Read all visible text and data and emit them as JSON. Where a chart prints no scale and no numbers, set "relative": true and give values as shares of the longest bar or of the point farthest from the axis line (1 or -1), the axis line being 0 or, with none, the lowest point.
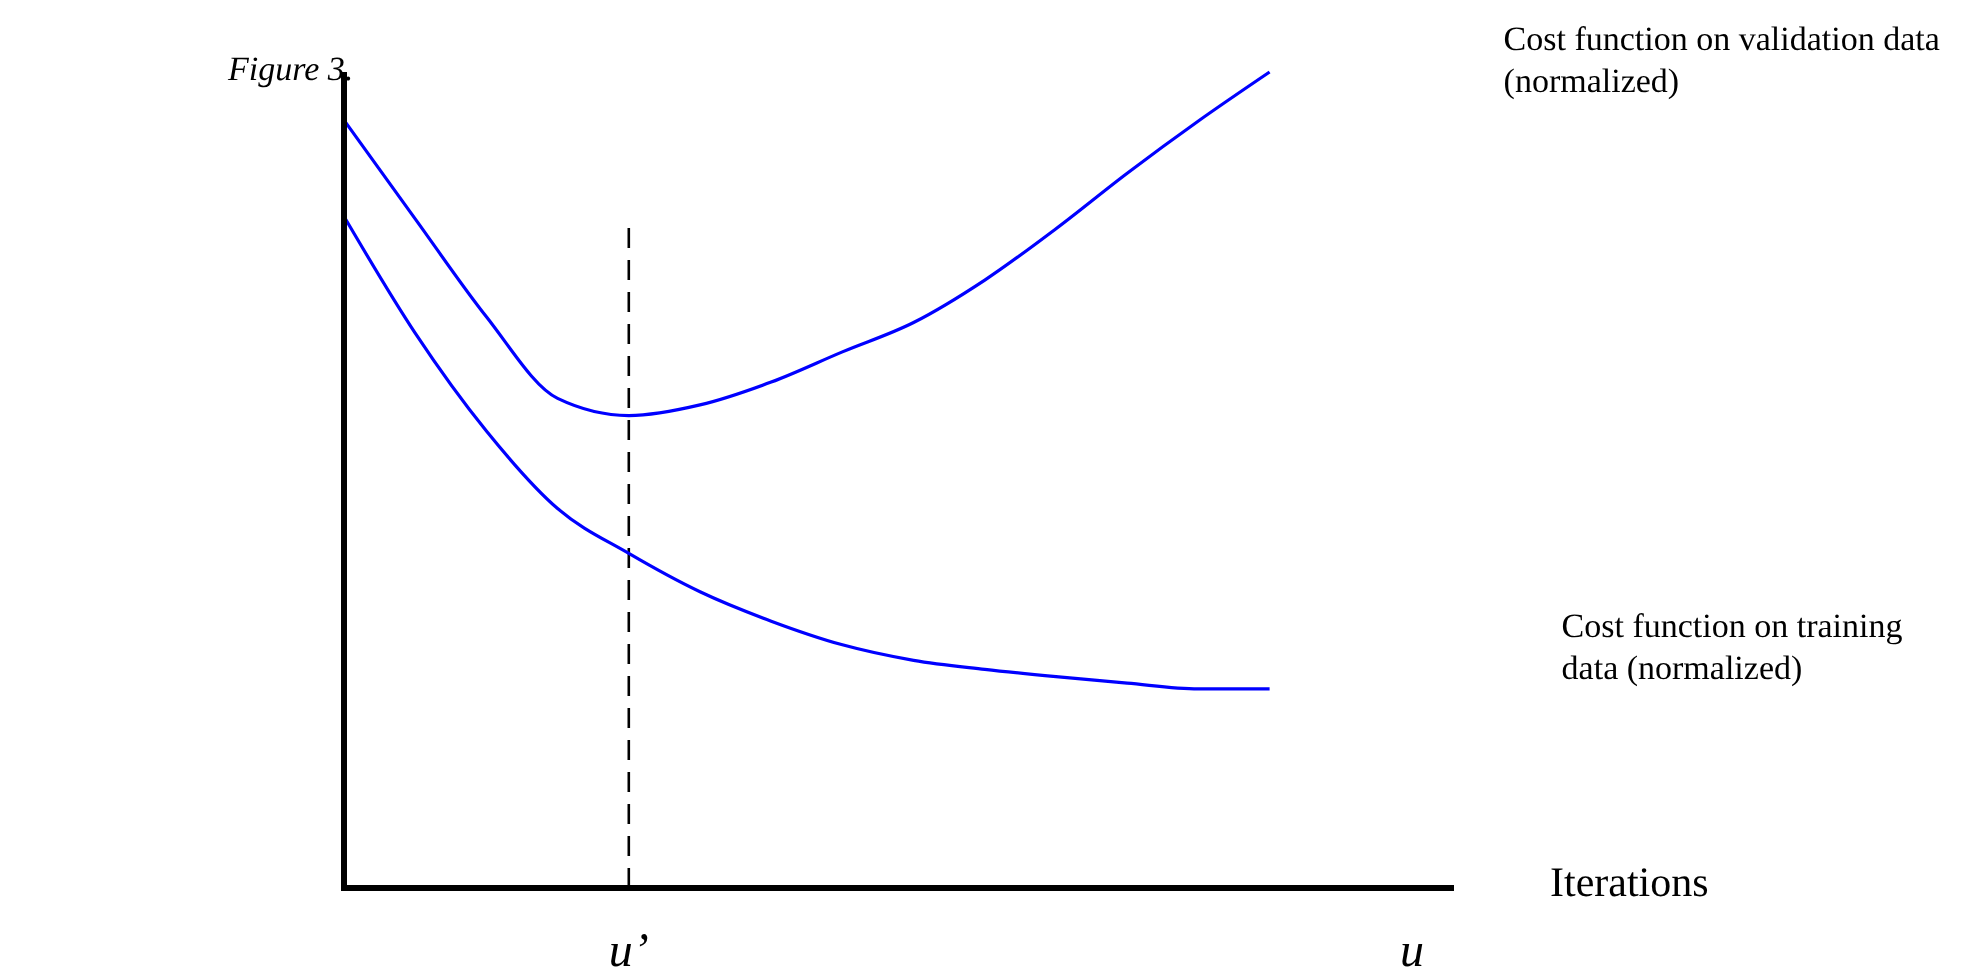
{
  "chart_data": {
    "type": "line",
    "title": "Figure 3.",
    "xlabel": "Iterations",
    "relative": true,
    "categories": [
      null,
      null,
      null,
      null,
      "u’",
      null,
      null,
      null,
      null,
      null,
      null,
      null,
      null,
      null,
      null,
      "u"
    ],
    "series": [
      {
        "name": "Cost function on validation data (normalized)",
        "color": "#0000ff",
        "values": [
          0.941,
          0.82,
          0.7,
          0.6,
          0.579,
          0.592,
          0.62,
          0.657,
          0.693,
          0.745,
          0.808,
          0.876,
          0.94,
          1,
          null,
          null
        ]
      },
      {
        "name": "Cost function on training data (normalized)",
        "color": "#0000ff",
        "values": [
          0.823,
          0.68,
          0.56,
          0.465,
          0.41,
          0.363,
          0.327,
          0.298,
          0.279,
          0.268,
          0.259,
          0.251,
          0.244,
          0.244,
          null,
          null
        ]
      }
    ],
    "ref_lines": [
      {
        "axis": "x",
        "value": "u’",
        "color": "#000000",
        "line_style": "dashed"
      }
    ]
  }
}
